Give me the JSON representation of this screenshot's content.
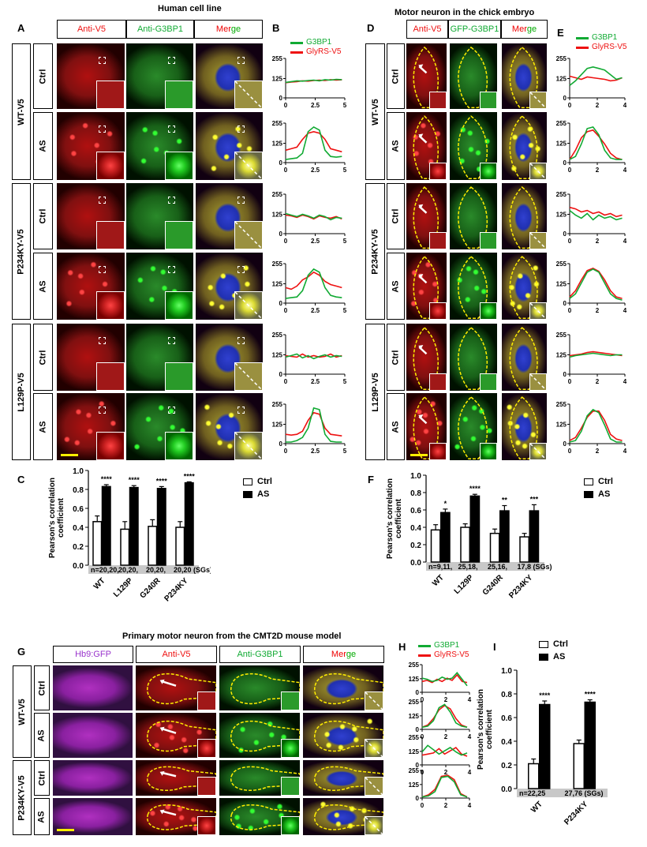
{
  "colors": {
    "red": "#ee1111",
    "green": "#11aa33",
    "blue": "#2233dd",
    "magenta": "#9933cc",
    "yellow": "#ffee00"
  },
  "panel_A": {
    "letter": "A",
    "title": "Human cell line",
    "columns": [
      "Anti-V5",
      "Anti-G3BP1",
      "Merge"
    ],
    "groups": [
      {
        "label": "WT-V5",
        "rows": [
          "Ctrl",
          "AS"
        ]
      },
      {
        "label": "P234KY-V5",
        "rows": [
          "Ctrl",
          "AS"
        ]
      },
      {
        "label": "L129P-V5",
        "rows": [
          "Ctrl",
          "AS"
        ]
      }
    ]
  },
  "panel_D": {
    "letter": "D",
    "title": "Motor neuron in the chick embryo",
    "columns": [
      "Anti-V5",
      "GFP-G3BP1",
      "Merge"
    ],
    "groups": [
      {
        "label": "WT-V5",
        "rows": [
          "Ctrl",
          "AS"
        ]
      },
      {
        "label": "P234KY-V5",
        "rows": [
          "Ctrl",
          "AS"
        ]
      },
      {
        "label": "L129P-V5",
        "rows": [
          "Ctrl",
          "AS"
        ]
      }
    ]
  },
  "panel_G": {
    "letter": "G",
    "title": "Primary motor neuron from the CMT2D mouse model",
    "columns": [
      "Hb9:GFP",
      "Anti-V5",
      "Anti-G3BP1",
      "Merge"
    ],
    "groups": [
      {
        "label": "WT-V5",
        "rows": [
          "Ctrl",
          "AS"
        ]
      },
      {
        "label": "P234KY-V5",
        "rows": [
          "Ctrl",
          "AS"
        ]
      }
    ]
  },
  "merge_label": {
    "m": "M",
    "e": "e",
    "r": "r",
    "g": "g",
    "e2": "e"
  },
  "chart_data": [
    {
      "panel": "B",
      "type": "line",
      "legend": [
        "G3BP1",
        "GlyRS-V5"
      ],
      "xlim": [
        0,
        5
      ],
      "xticks": [
        "0",
        "2.5",
        "5"
      ],
      "ylim": [
        0,
        255
      ],
      "yticks": [
        "0",
        "125",
        "255"
      ],
      "plots": [
        {
          "row": "WT-V5 Ctrl",
          "G3BP1": [
            100,
            105,
            110,
            108,
            112,
            115,
            110,
            118,
            115,
            120,
            118
          ],
          "GlyRS-V5": [
            98,
            102,
            105,
            110,
            108,
            112,
            115,
            112,
            118,
            115,
            117
          ]
        },
        {
          "row": "WT-V5 AS",
          "G3BP1": [
            20,
            25,
            30,
            60,
            200,
            230,
            210,
            80,
            40,
            35,
            40
          ],
          "GlyRS-V5": [
            80,
            90,
            100,
            150,
            190,
            200,
            190,
            150,
            90,
            80,
            70
          ]
        },
        {
          "row": "P234KY-V5 Ctrl",
          "G3BP1": [
            130,
            120,
            110,
            125,
            115,
            100,
            120,
            110,
            90,
            105,
            100
          ],
          "GlyRS-V5": [
            120,
            115,
            105,
            120,
            110,
            95,
            115,
            105,
            100,
            110,
            95
          ]
        },
        {
          "row": "P234KY-V5 AS",
          "G3BP1": [
            30,
            35,
            40,
            80,
            180,
            220,
            200,
            100,
            50,
            40,
            35
          ],
          "GlyRS-V5": [
            100,
            90,
            110,
            150,
            170,
            200,
            180,
            140,
            120,
            110,
            100
          ]
        },
        {
          "row": "L129P-V5 Ctrl",
          "G3BP1": [
            110,
            120,
            130,
            105,
            120,
            100,
            115,
            125,
            110,
            120,
            115
          ],
          "GlyRS-V5": [
            120,
            115,
            110,
            130,
            110,
            120,
            110,
            115,
            130,
            110,
            120
          ]
        },
        {
          "row": "L129P-V5 AS",
          "G3BP1": [
            10,
            10,
            20,
            40,
            100,
            230,
            220,
            60,
            15,
            10,
            10
          ],
          "GlyRS-V5": [
            60,
            55,
            60,
            80,
            150,
            200,
            190,
            100,
            60,
            55,
            50
          ]
        }
      ]
    },
    {
      "panel": "E",
      "type": "line",
      "legend": [
        "G3BP1",
        "GlyRS-V5"
      ],
      "xlim": [
        0,
        4
      ],
      "xticks": [
        "0",
        "2",
        "4"
      ],
      "ylim": [
        0,
        255
      ],
      "yticks": [
        "0",
        "125",
        "255"
      ],
      "plots": [
        {
          "row": "WT-V5 Ctrl",
          "G3BP1": [
            80,
            110,
            150,
            190,
            200,
            190,
            180,
            150,
            120,
            130
          ],
          "GlyRS-V5": [
            140,
            130,
            120,
            135,
            130,
            125,
            120,
            110,
            115,
            130
          ]
        },
        {
          "row": "WT-V5 AS",
          "G3BP1": [
            20,
            40,
            120,
            220,
            230,
            180,
            80,
            30,
            20,
            20
          ],
          "GlyRS-V5": [
            20,
            80,
            160,
            200,
            210,
            170,
            120,
            60,
            30,
            20
          ]
        },
        {
          "row": "P234KY-V5 Ctrl",
          "G3BP1": [
            150,
            120,
            100,
            130,
            90,
            120,
            100,
            110,
            90,
            100
          ],
          "GlyRS-V5": [
            170,
            160,
            140,
            150,
            130,
            140,
            120,
            130,
            110,
            120
          ]
        },
        {
          "row": "P234KY-V5 AS",
          "G3BP1": [
            30,
            60,
            130,
            200,
            220,
            200,
            130,
            60,
            30,
            20
          ],
          "GlyRS-V5": [
            40,
            80,
            150,
            210,
            225,
            205,
            150,
            80,
            40,
            30
          ]
        },
        {
          "row": "L129P-V5 Ctrl",
          "G3BP1": [
            110,
            120,
            125,
            130,
            135,
            130,
            125,
            120,
            125,
            125
          ],
          "GlyRS-V5": [
            120,
            125,
            130,
            140,
            145,
            140,
            135,
            130,
            125,
            120
          ]
        },
        {
          "row": "L129P-V5 AS",
          "G3BP1": [
            10,
            20,
            80,
            180,
            220,
            200,
            120,
            30,
            10,
            10
          ],
          "GlyRS-V5": [
            20,
            40,
            100,
            170,
            210,
            210,
            150,
            60,
            30,
            20
          ]
        }
      ]
    },
    {
      "panel": "H",
      "type": "line",
      "legend": [
        "G3BP1",
        "GlyRS-V5"
      ],
      "xlim": [
        0,
        4
      ],
      "xticks": [
        "0",
        "2",
        "4"
      ],
      "ylim": [
        0,
        255
      ],
      "yticks": [
        "0",
        "125",
        "255"
      ],
      "plots": [
        {
          "row": "WT-V5 Ctrl",
          "G3BP1": [
            130,
            120,
            100,
            110,
            140,
            120,
            130,
            180,
            120,
            60
          ],
          "GlyRS-V5": [
            100,
            110,
            90,
            120,
            100,
            130,
            110,
            160,
            100,
            90
          ]
        },
        {
          "row": "WT-V5 AS",
          "G3BP1": [
            20,
            30,
            80,
            200,
            230,
            160,
            60,
            30,
            20
          ],
          "GlyRS-V5": [
            20,
            40,
            100,
            180,
            220,
            190,
            100,
            40,
            20
          ]
        },
        {
          "row": "P234KY-V5 Ctrl",
          "G3BP1": [
            120,
            180,
            140,
            100,
            130,
            160,
            120,
            90,
            110
          ],
          "GlyRS-V5": [
            90,
            100,
            110,
            150,
            100,
            130,
            160,
            100,
            80
          ]
        },
        {
          "row": "P234KY-V5 AS",
          "G3BP1": [
            10,
            20,
            60,
            190,
            200,
            150,
            30,
            10
          ],
          "GlyRS-V5": [
            10,
            30,
            80,
            200,
            210,
            170,
            40,
            10
          ]
        }
      ]
    },
    {
      "panel": "C",
      "letter": "C",
      "type": "bar",
      "ylabel": "Pearson's correlation coefficient",
      "ylim": [
        0,
        1
      ],
      "yticks": [
        "0.0",
        "0.2",
        "0.4",
        "0.6",
        "0.8",
        "1.0"
      ],
      "categories": [
        "WT",
        "L129P",
        "G240R",
        "P234KY"
      ],
      "n_label": "n=20,20,  20,20,  20,20,  20,20 (SGs)",
      "n_labels": [
        "n=20,20,",
        "20,20,",
        "20,20,",
        "20,20 (SGs)"
      ],
      "legend": [
        "Ctrl",
        "AS"
      ],
      "series": [
        {
          "name": "Ctrl",
          "values": [
            0.46,
            0.38,
            0.41,
            0.4
          ],
          "errors": [
            0.06,
            0.08,
            0.07,
            0.06
          ]
        },
        {
          "name": "AS",
          "values": [
            0.83,
            0.82,
            0.81,
            0.87
          ],
          "errors": [
            0.02,
            0.02,
            0.02,
            0.01
          ]
        }
      ],
      "significance": [
        "****",
        "****",
        "****",
        "****"
      ]
    },
    {
      "panel": "F",
      "letter": "F",
      "type": "bar",
      "ylabel": "Pearson's correlation coefficient",
      "ylim": [
        0,
        1
      ],
      "yticks": [
        "0.0",
        "0.2",
        "0.4",
        "0.6",
        "0.8",
        "1.0"
      ],
      "categories": [
        "WT",
        "L129P",
        "G240R",
        "P234KY"
      ],
      "n_labels": [
        "n=9,11,",
        "25,18,",
        "25,16,",
        "17,8 (SGs)"
      ],
      "legend": [
        "Ctrl",
        "AS"
      ],
      "series": [
        {
          "name": "Ctrl",
          "values": [
            0.37,
            0.4,
            0.33,
            0.29
          ],
          "errors": [
            0.06,
            0.04,
            0.05,
            0.04
          ]
        },
        {
          "name": "AS",
          "values": [
            0.57,
            0.76,
            0.59,
            0.59
          ],
          "errors": [
            0.04,
            0.02,
            0.06,
            0.07
          ]
        }
      ],
      "significance": [
        "*",
        "****",
        "**",
        "***"
      ]
    },
    {
      "panel": "I",
      "letter": "I",
      "type": "bar",
      "ylabel": "Pearson's correlation coefficient",
      "ylim": [
        0,
        1
      ],
      "yticks": [
        "0.0",
        "0.2",
        "0.4",
        "0.6",
        "0.8",
        "1.0"
      ],
      "categories": [
        "WT",
        "P234KY"
      ],
      "n_labels": [
        "n=22,25",
        "27,76 (SGs)"
      ],
      "legend": [
        "Ctrl",
        "AS"
      ],
      "series": [
        {
          "name": "Ctrl",
          "values": [
            0.21,
            0.38
          ],
          "errors": [
            0.04,
            0.03
          ]
        },
        {
          "name": "AS",
          "values": [
            0.71,
            0.73
          ],
          "errors": [
            0.03,
            0.02
          ]
        }
      ],
      "significance": [
        "****",
        "****"
      ]
    }
  ]
}
